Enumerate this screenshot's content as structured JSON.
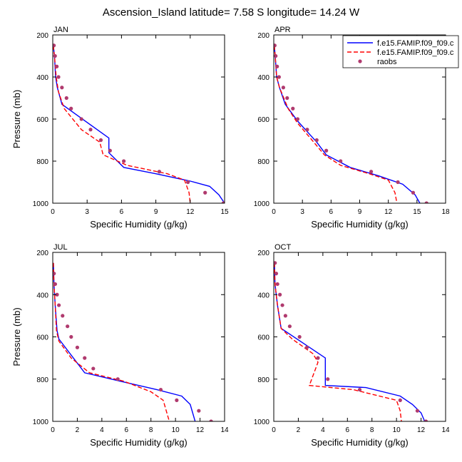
{
  "figure": {
    "title": "Ascension_Island  latitude= 7.58 S longitude= 14.24 W"
  },
  "legend": {
    "entries": [
      {
        "label": "f.e15.FAMIP.f09_f09.c",
        "style": "solid",
        "color": "#0000ff"
      },
      {
        "label": "f.e15.FAMIP.f09_f09.c",
        "style": "dashed",
        "color": "#ff0000"
      },
      {
        "label": "raobs",
        "style": "marker",
        "color": "#b03a6e"
      }
    ]
  },
  "chart_data": [
    {
      "type": "line",
      "panel_label": "JAN",
      "xlabel": "Specific Humidity (g/kg)",
      "ylabel": "Pressure (mb)",
      "xlim": [
        0,
        15
      ],
      "xticks": [
        0,
        3,
        6,
        9,
        12,
        15
      ],
      "ylim": [
        1000,
        200
      ],
      "yticks": [
        200,
        400,
        600,
        800,
        1000
      ],
      "series": [
        {
          "name": "f.e15.FAMIP.f09_f09.c",
          "style": "solid",
          "points": [
            [
              0.05,
              250
            ],
            [
              0.15,
              300
            ],
            [
              0.25,
              400
            ],
            [
              0.4,
              450
            ],
            [
              0.8,
              530
            ],
            [
              4.9,
              690
            ],
            [
              4.9,
              760
            ],
            [
              6.2,
              830
            ],
            [
              9,
              860
            ],
            [
              12,
              895
            ],
            [
              13.7,
              920
            ],
            [
              14.5,
              960
            ],
            [
              15,
              1000
            ]
          ]
        },
        {
          "name": "f.e15.FAMIP.f09_f09.c",
          "style": "dashed",
          "points": [
            [
              0.05,
              250
            ],
            [
              0.15,
              300
            ],
            [
              0.3,
              400
            ],
            [
              0.5,
              470
            ],
            [
              1,
              550
            ],
            [
              2.5,
              650
            ],
            [
              4.1,
              710
            ],
            [
              4.4,
              770
            ],
            [
              6.5,
              820
            ],
            [
              10,
              860
            ],
            [
              11.5,
              890
            ],
            [
              11.9,
              950
            ],
            [
              12,
              1000
            ]
          ]
        },
        {
          "name": "raobs",
          "style": "marker",
          "points": [
            [
              0.1,
              250
            ],
            [
              0.2,
              300
            ],
            [
              0.35,
              350
            ],
            [
              0.5,
              400
            ],
            [
              0.8,
              450
            ],
            [
              1.2,
              500
            ],
            [
              1.6,
              550
            ],
            [
              2.5,
              600
            ],
            [
              3.3,
              650
            ],
            [
              4.2,
              700
            ],
            [
              5,
              750
            ],
            [
              6.2,
              800
            ],
            [
              9.3,
              850
            ],
            [
              11.8,
              900
            ],
            [
              13.3,
              950
            ],
            [
              14.9,
              1000
            ]
          ]
        }
      ]
    },
    {
      "type": "line",
      "panel_label": "APR",
      "xlabel": "Specific Humidity (g/kg)",
      "ylabel": "",
      "xlim": [
        0,
        18
      ],
      "xticks": [
        0,
        3,
        6,
        9,
        12,
        15,
        18
      ],
      "ylim": [
        1000,
        200
      ],
      "yticks": [
        200,
        400,
        600,
        800,
        1000
      ],
      "series": [
        {
          "name": "f.e15.FAMIP.f09_f09.c",
          "style": "solid",
          "points": [
            [
              0.05,
              250
            ],
            [
              0.15,
              300
            ],
            [
              0.3,
              400
            ],
            [
              0.6,
              450
            ],
            [
              1.2,
              530
            ],
            [
              2.5,
              610
            ],
            [
              4.5,
              710
            ],
            [
              5.5,
              770
            ],
            [
              8,
              830
            ],
            [
              11,
              870
            ],
            [
              13.5,
              910
            ],
            [
              14.8,
              960
            ],
            [
              15.3,
              1000
            ]
          ]
        },
        {
          "name": "f.e15.FAMIP.f09_f09.c",
          "style": "dashed",
          "points": [
            [
              0.05,
              250
            ],
            [
              0.15,
              300
            ],
            [
              0.3,
              400
            ],
            [
              0.6,
              450
            ],
            [
              1.5,
              550
            ],
            [
              2.5,
              620
            ],
            [
              4,
              700
            ],
            [
              5.3,
              770
            ],
            [
              7,
              820
            ],
            [
              10,
              860
            ],
            [
              12,
              890
            ],
            [
              12.7,
              950
            ],
            [
              12.9,
              1000
            ]
          ]
        },
        {
          "name": "raobs",
          "style": "marker",
          "points": [
            [
              0.1,
              250
            ],
            [
              0.2,
              300
            ],
            [
              0.35,
              350
            ],
            [
              0.55,
              400
            ],
            [
              1,
              450
            ],
            [
              1.4,
              500
            ],
            [
              2,
              550
            ],
            [
              2.5,
              600
            ],
            [
              3.5,
              650
            ],
            [
              4.5,
              700
            ],
            [
              5.5,
              750
            ],
            [
              7,
              800
            ],
            [
              10.2,
              850
            ],
            [
              13,
              900
            ],
            [
              14.6,
              950
            ],
            [
              16,
              1000
            ]
          ]
        }
      ]
    },
    {
      "type": "line",
      "panel_label": "JUL",
      "xlabel": "Specific Humidity (g/kg)",
      "ylabel": "Pressure (mb)",
      "xlim": [
        0,
        14
      ],
      "xticks": [
        0,
        2,
        4,
        6,
        8,
        10,
        12,
        14
      ],
      "ylim": [
        1000,
        200
      ],
      "yticks": [
        200,
        400,
        600,
        800,
        1000
      ],
      "series": [
        {
          "name": "f.e15.FAMIP.f09_f09.c",
          "style": "solid",
          "points": [
            [
              0.05,
              250
            ],
            [
              0.1,
              350
            ],
            [
              0.2,
              450
            ],
            [
              0.35,
              570
            ],
            [
              0.5,
              610
            ],
            [
              2.6,
              770
            ],
            [
              5.5,
              810
            ],
            [
              8.5,
              850
            ],
            [
              10.5,
              880
            ],
            [
              11.2,
              920
            ],
            [
              11.6,
              1000
            ]
          ]
        },
        {
          "name": "f.e15.FAMIP.f09_f09.c",
          "style": "dashed",
          "points": [
            [
              0.05,
              250
            ],
            [
              0.1,
              350
            ],
            [
              0.2,
              450
            ],
            [
              0.3,
              570
            ],
            [
              0.5,
              620
            ],
            [
              1.5,
              700
            ],
            [
              3,
              770
            ],
            [
              5.8,
              810
            ],
            [
              8,
              860
            ],
            [
              9,
              900
            ],
            [
              9.5,
              1000
            ]
          ]
        },
        {
          "name": "raobs",
          "style": "marker",
          "points": [
            [
              0.1,
              300
            ],
            [
              0.2,
              350
            ],
            [
              0.35,
              400
            ],
            [
              0.5,
              450
            ],
            [
              0.8,
              500
            ],
            [
              1.2,
              550
            ],
            [
              1.5,
              600
            ],
            [
              2,
              650
            ],
            [
              2.6,
              700
            ],
            [
              3.3,
              750
            ],
            [
              5.3,
              800
            ],
            [
              8.8,
              850
            ],
            [
              10.1,
              900
            ],
            [
              11.9,
              950
            ],
            [
              12.9,
              1000
            ]
          ]
        }
      ]
    },
    {
      "type": "line",
      "panel_label": "OCT",
      "xlabel": "Specific Humidity (g/kg)",
      "ylabel": "",
      "xlim": [
        0,
        14
      ],
      "xticks": [
        0,
        2,
        4,
        6,
        8,
        10,
        12,
        14
      ],
      "ylim": [
        1000,
        200
      ],
      "yticks": [
        200,
        400,
        600,
        800,
        1000
      ],
      "series": [
        {
          "name": "f.e15.FAMIP.f09_f09.c",
          "style": "solid",
          "points": [
            [
              0.05,
              250
            ],
            [
              0.1,
              350
            ],
            [
              0.3,
              450
            ],
            [
              0.6,
              560
            ],
            [
              4.2,
              700
            ],
            [
              4.2,
              830
            ],
            [
              7.5,
              840
            ],
            [
              10.3,
              880
            ],
            [
              11.3,
              920
            ],
            [
              12,
              960
            ],
            [
              12.3,
              1000
            ]
          ]
        },
        {
          "name": "f.e15.FAMIP.f09_f09.c",
          "style": "dashed",
          "points": [
            [
              0.05,
              250
            ],
            [
              0.1,
              350
            ],
            [
              0.3,
              450
            ],
            [
              0.6,
              560
            ],
            [
              1.5,
              610
            ],
            [
              3.2,
              680
            ],
            [
              3.6,
              720
            ],
            [
              2.9,
              830
            ],
            [
              6.5,
              850
            ],
            [
              10,
              900
            ],
            [
              10.3,
              950
            ],
            [
              10.4,
              1000
            ]
          ]
        },
        {
          "name": "raobs",
          "style": "marker",
          "points": [
            [
              0.1,
              250
            ],
            [
              0.2,
              300
            ],
            [
              0.3,
              350
            ],
            [
              0.5,
              400
            ],
            [
              0.7,
              450
            ],
            [
              0.95,
              500
            ],
            [
              1.3,
              550
            ],
            [
              2.1,
              600
            ],
            [
              2.7,
              650
            ],
            [
              3.6,
              700
            ],
            [
              4.4,
              800
            ],
            [
              7,
              850
            ],
            [
              10.3,
              900
            ],
            [
              11.7,
              950
            ],
            [
              12.4,
              1000
            ]
          ]
        }
      ]
    }
  ]
}
